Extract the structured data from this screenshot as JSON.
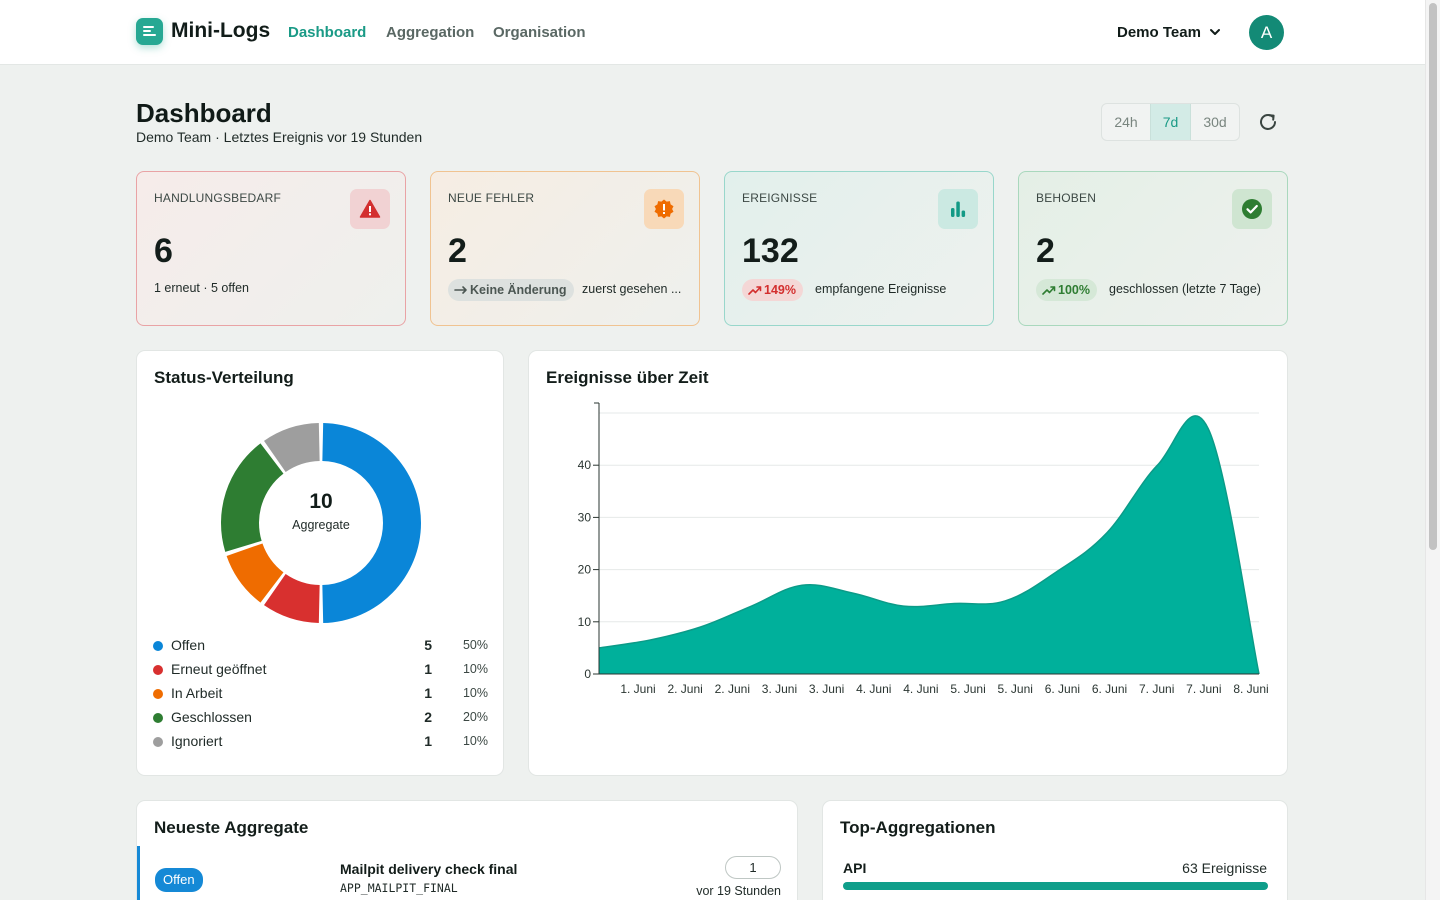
{
  "app": {
    "name": "Mini-Logs"
  },
  "nav": {
    "items": [
      "Dashboard",
      "Aggregation",
      "Organisation"
    ],
    "active": "Dashboard"
  },
  "team": {
    "name": "Demo Team",
    "avatar_initial": "A"
  },
  "header": {
    "title": "Dashboard",
    "subtitle": "Demo Team · Letztes Ereignis vor 19 Stunden",
    "ranges": [
      "24h",
      "7d",
      "30d"
    ],
    "selected_range": "7d"
  },
  "kpis": {
    "action": {
      "label": "HANDLUNGSBEDARF",
      "value": "6",
      "footer": "1 erneut · 5 offen",
      "icon": "warning-triangle-icon"
    },
    "new_errors": {
      "label": "NEUE FEHLER",
      "value": "2",
      "pill": "Keine Änderung",
      "footer": "zuerst gesehen ...",
      "icon": "alert-badge-icon"
    },
    "events": {
      "label": "EREIGNISSE",
      "value": "132",
      "pill": "149%",
      "footer": "empfangene Ereignisse",
      "icon": "bar-chart-icon"
    },
    "resolved": {
      "label": "BEHOBEN",
      "value": "2",
      "pill": "100%",
      "footer": "geschlossen (letzte 7 Tage)",
      "icon": "check-circle-icon"
    }
  },
  "status_panel": {
    "title": "Status-Verteilung",
    "center_value": "10",
    "center_label": "Aggregate",
    "items": [
      {
        "label": "Offen",
        "count": "5",
        "pct": "50%",
        "color": "#0a86d8"
      },
      {
        "label": "Erneut geöffnet",
        "count": "1",
        "pct": "10%",
        "color": "#d8302f"
      },
      {
        "label": "In Arbeit",
        "count": "1",
        "pct": "10%",
        "color": "#ef6c00"
      },
      {
        "label": "Geschlossen",
        "count": "2",
        "pct": "20%",
        "color": "#2e7d32"
      },
      {
        "label": "Ignoriert",
        "count": "1",
        "pct": "10%",
        "color": "#9e9e9e"
      }
    ]
  },
  "events_panel": {
    "title": "Ereignisse über Zeit"
  },
  "chart_data": {
    "type": "area",
    "title": "Ereignisse über Zeit",
    "x": [
      "1. Juni",
      "2. Juni",
      "2. Juni",
      "3. Juni",
      "3. Juni",
      "4. Juni",
      "4. Juni",
      "5. Juni",
      "5. Juni",
      "6. Juni",
      "6. Juni",
      "7. Juni",
      "7. Juni",
      "8. Juni"
    ],
    "values": [
      5,
      6.5,
      9,
      13,
      17,
      15.5,
      13,
      13.5,
      14,
      19.5,
      27,
      40,
      47,
      0
    ],
    "ylim": [
      0,
      50
    ],
    "yticks": [
      0,
      10,
      20,
      30,
      40
    ],
    "grid": true,
    "color": "#00b09b"
  },
  "latest_panel": {
    "title": "Neueste Aggregate",
    "rows": [
      {
        "status": "Offen",
        "title": "Mailpit delivery check final",
        "code": "APP_MAILPIT_FINAL",
        "count": "1",
        "time": "vor 19 Stunden"
      }
    ]
  },
  "top_panel": {
    "title": "Top-Aggregationen",
    "rows": [
      {
        "name": "API",
        "count": "63 Ereignisse",
        "share": 1.0
      }
    ]
  }
}
